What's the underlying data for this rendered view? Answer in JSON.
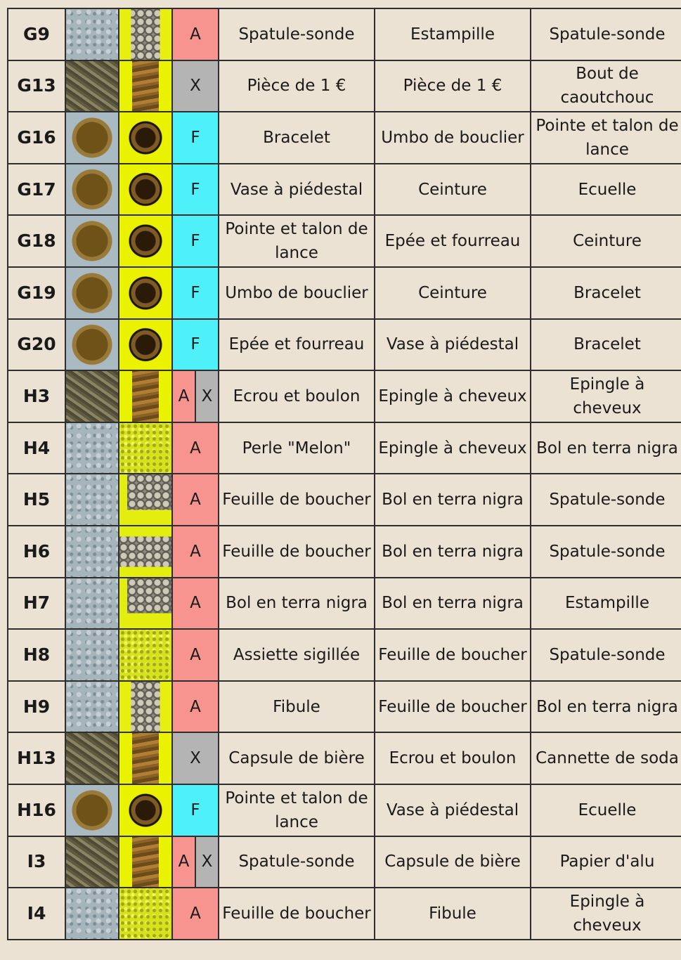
{
  "table": {
    "rows": [
      {
        "id": "G9",
        "code": [
          "A"
        ],
        "items": [
          "Spatule-sonde",
          "Estampille",
          "Spatule-sonde"
        ]
      },
      {
        "id": "G13",
        "code": [
          "X"
        ],
        "items": [
          "Pièce de 1 €",
          "Pièce de 1 €",
          "Bout de caoutchouc"
        ]
      },
      {
        "id": "G16",
        "code": [
          "F"
        ],
        "items": [
          "Bracelet",
          "Umbo de bouclier",
          "Pointe et talon de lance"
        ]
      },
      {
        "id": "G17",
        "code": [
          "F"
        ],
        "items": [
          "Vase à piédestal",
          "Ceinture",
          "Ecuelle"
        ]
      },
      {
        "id": "G18",
        "code": [
          "F"
        ],
        "items": [
          "Pointe et talon de lance",
          "Epée et fourreau",
          "Ceinture"
        ]
      },
      {
        "id": "G19",
        "code": [
          "F"
        ],
        "items": [
          "Umbo de bouclier",
          "Ceinture",
          "Bracelet"
        ]
      },
      {
        "id": "G20",
        "code": [
          "F"
        ],
        "items": [
          "Epée et fourreau",
          "Vase à piédestal",
          "Bracelet"
        ]
      },
      {
        "id": "H3",
        "code": [
          "A",
          "X"
        ],
        "items": [
          "Ecrou et boulon",
          "Epingle à cheveux",
          "Epingle à cheveux"
        ]
      },
      {
        "id": "H4",
        "code": [
          "A"
        ],
        "items": [
          "Perle \"Melon\"",
          "Epingle à cheveux",
          "Bol en terra nigra"
        ]
      },
      {
        "id": "H5",
        "code": [
          "A"
        ],
        "items": [
          "Feuille de boucher",
          "Bol en terra nigra",
          "Spatule-sonde"
        ]
      },
      {
        "id": "H6",
        "code": [
          "A"
        ],
        "items": [
          "Feuille de boucher",
          "Bol en terra nigra",
          "Spatule-sonde"
        ]
      },
      {
        "id": "H7",
        "code": [
          "A"
        ],
        "items": [
          "Bol en terra nigra",
          "Bol en terra nigra",
          "Estampille"
        ]
      },
      {
        "id": "H8",
        "code": [
          "A"
        ],
        "items": [
          "Assiette sigillée",
          "Feuille de boucher",
          "Spatule-sonde"
        ]
      },
      {
        "id": "H9",
        "code": [
          "A"
        ],
        "items": [
          "Fibule",
          "Feuille de boucher",
          "Bol en terra nigra"
        ]
      },
      {
        "id": "H13",
        "code": [
          "X"
        ],
        "items": [
          "Capsule de bière",
          "Ecrou et boulon",
          "Cannette de soda"
        ]
      },
      {
        "id": "H16",
        "code": [
          "F"
        ],
        "items": [
          "Pointe et talon de lance",
          "Vase à piédestal",
          "Ecuelle"
        ]
      },
      {
        "id": "I3",
        "code": [
          "A",
          "X"
        ],
        "items": [
          "Spatule-sonde",
          "Capsule de bière",
          "Papier d'alu"
        ]
      },
      {
        "id": "I4",
        "code": [
          "A"
        ],
        "items": [
          "Feuille de boucher",
          "Fibule",
          "Epingle à cheveux"
        ]
      }
    ]
  }
}
